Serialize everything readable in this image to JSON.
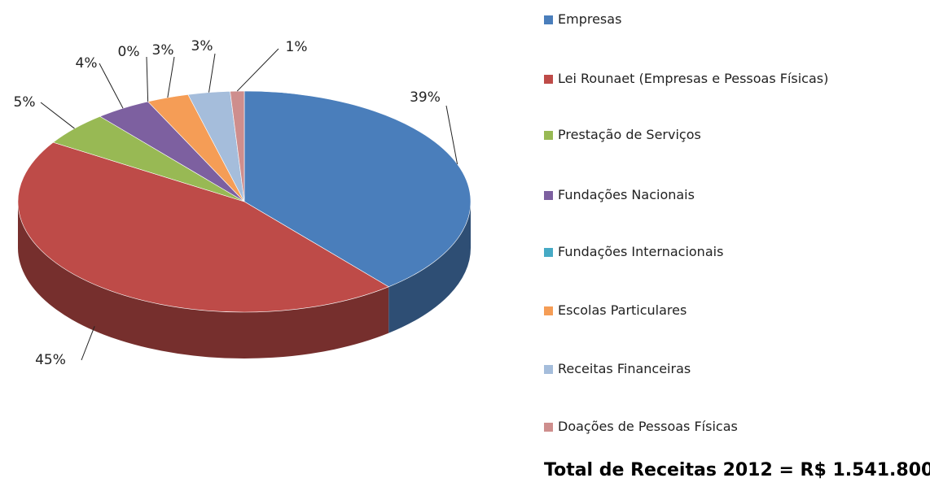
{
  "chart_data": {
    "type": "pie",
    "categories": [
      "Empresas",
      "Lei Rounaet (Empresas e Pessoas Físicas)",
      "Prestação de Serviços",
      "Fundações Nacionais",
      "Fundações Internacionais",
      "Escolas Particulares",
      "Receitas Financeiras",
      "Doações de Pessoas Físicas"
    ],
    "values": [
      39,
      45,
      5,
      4,
      0,
      3,
      3,
      1
    ],
    "value_labels": [
      "39%",
      "45%",
      "5%",
      "4%",
      "0%",
      "3%",
      "3%",
      "1%"
    ],
    "colors": [
      "#4a7ebb",
      "#be4b48",
      "#98b954",
      "#7d60a0",
      "#46aac5",
      "#f59d56",
      "#a5bddb",
      "#ce8e8d"
    ],
    "legend": "right",
    "annotation": "Total de Receitas 2012 = R$ 1.541.800"
  }
}
